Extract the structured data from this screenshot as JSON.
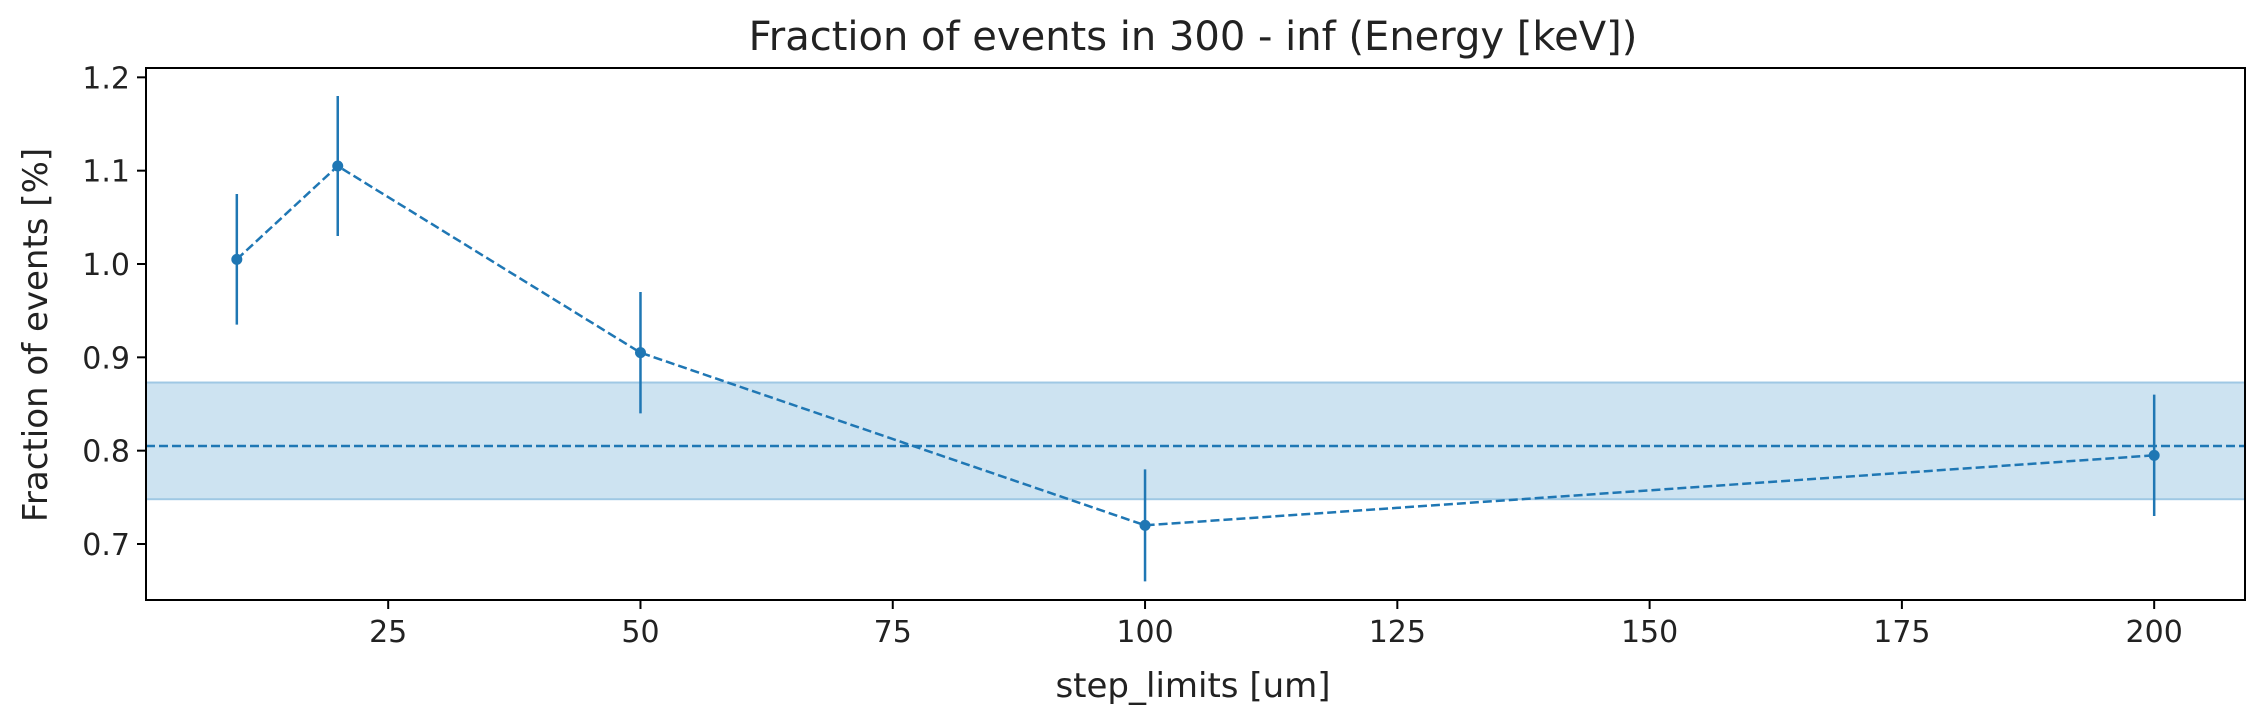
{
  "chart_data": {
    "type": "line",
    "title": "Fraction of events in 300 - inf (Energy [keV])",
    "xlabel": "step_limits [um]",
    "ylabel": "Fraction of events [%]",
    "xlim": [
      1,
      209
    ],
    "ylim": [
      0.64,
      1.21
    ],
    "x_ticks": [
      25,
      50,
      75,
      100,
      125,
      150,
      175,
      200
    ],
    "y_ticks": [
      0.7,
      0.8,
      0.9,
      1.0,
      1.1,
      1.2
    ],
    "grid": false,
    "series": [
      {
        "x": [
          10,
          20,
          50,
          100,
          200
        ],
        "values": [
          1.005,
          1.105,
          0.905,
          0.72,
          0.795
        ],
        "error": [
          0.07,
          0.075,
          0.065,
          0.06,
          0.065
        ],
        "color": "#1f77b4",
        "linestyle": "dashed",
        "marker": "circle"
      }
    ],
    "reference": {
      "mean": 0.805,
      "band": [
        0.748,
        0.873
      ],
      "line_color": "#1f77b4",
      "band_color": "#cde3f1"
    }
  }
}
